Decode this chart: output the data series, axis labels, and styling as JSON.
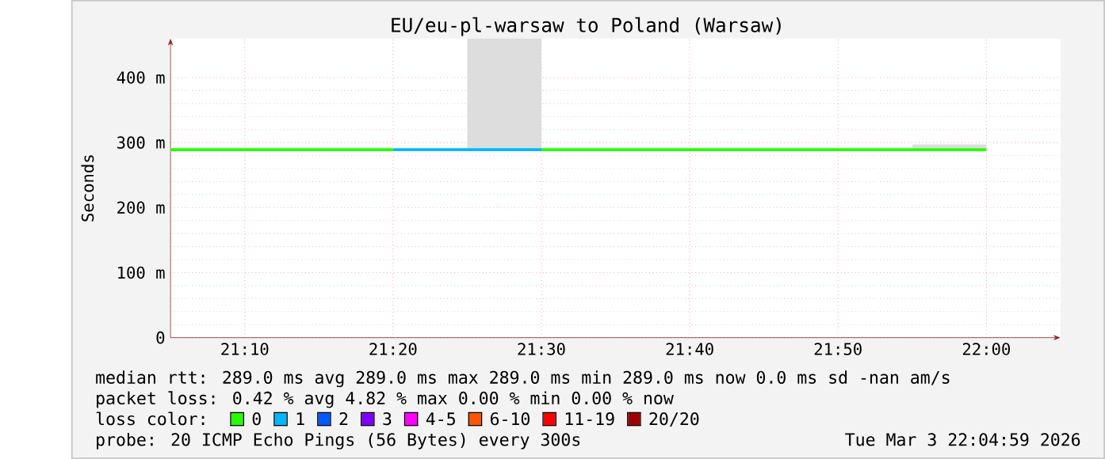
{
  "chart_data": {
    "type": "step",
    "title": "EU/eu-pl-warsaw to Poland (Warsaw)",
    "ylabel": "Seconds",
    "legend_title": "loss color:",
    "x": [
      21.0833,
      21.1667,
      21.25,
      21.3333,
      21.4167,
      21.5,
      21.5833,
      21.6667,
      21.75,
      21.8333,
      21.9167,
      22.0
    ],
    "series": [
      {
        "name": "0",
        "color": "#26ff00",
        "values": [
          289,
          289,
          289,
          289,
          null,
          289,
          289,
          289,
          289,
          289,
          289,
          289
        ],
        "lower": [
          null,
          null,
          null,
          null,
          null,
          null,
          null,
          null,
          null,
          null,
          289,
          289
        ],
        "upper": [
          null,
          null,
          null,
          null,
          null,
          null,
          null,
          null,
          null,
          null,
          297,
          297
        ]
      },
      {
        "name": "1",
        "color": "#00b8ff",
        "values": [
          null,
          null,
          null,
          289,
          289,
          289,
          null,
          null,
          null,
          null,
          null,
          null
        ],
        "lower": [
          null,
          null,
          null,
          null,
          289,
          289,
          null,
          null,
          null,
          null,
          null,
          null
        ],
        "upper": [
          null,
          null,
          null,
          null,
          460,
          460,
          null,
          null,
          null,
          null,
          null,
          null
        ]
      },
      {
        "name": "2",
        "color": "#0059ff",
        "values": [
          null,
          null,
          null,
          null,
          null,
          null,
          null,
          null,
          null,
          null,
          null,
          null
        ]
      },
      {
        "name": "3",
        "color": "#7e00ff",
        "values": [
          null,
          null,
          null,
          null,
          null,
          null,
          null,
          null,
          null,
          null,
          null,
          null
        ]
      },
      {
        "name": "4-5",
        "color": "#ff00ff",
        "values": [
          null,
          null,
          null,
          null,
          null,
          null,
          null,
          null,
          null,
          null,
          null,
          null
        ]
      },
      {
        "name": "6-10",
        "color": "#ff5500",
        "values": [
          null,
          null,
          null,
          null,
          null,
          null,
          null,
          null,
          null,
          null,
          null,
          null
        ]
      },
      {
        "name": "11-19",
        "color": "#ff0000",
        "values": [
          null,
          null,
          null,
          null,
          null,
          null,
          null,
          null,
          null,
          null,
          null,
          null
        ]
      },
      {
        "name": "20/20",
        "color": "#a10000",
        "values": [
          null,
          null,
          null,
          null,
          null,
          null,
          null,
          null,
          null,
          null,
          null,
          null
        ]
      }
    ],
    "xlim": [
      21.0833,
      22.0833
    ],
    "xticks": [
      {
        "value": 21.1667,
        "label": "21:10"
      },
      {
        "value": 21.3333,
        "label": "21:20"
      },
      {
        "value": 21.5,
        "label": "21:30"
      },
      {
        "value": 21.6667,
        "label": "21:40"
      },
      {
        "value": 21.8333,
        "label": "21:50"
      },
      {
        "value": 22.0,
        "label": "22:00"
      }
    ],
    "ylim": [
      0,
      460
    ],
    "yticks": [
      0,
      {
        "value": 100,
        "label": "100 m"
      },
      {
        "value": 200,
        "label": "200 m"
      },
      {
        "value": 300,
        "label": "300 m"
      },
      {
        "value": 400,
        "label": "400 m"
      }
    ],
    "grid": true,
    "legend": "bottom",
    "annotations": [
      "median rtt:  289.0 ms avg  289.0 ms max  289.0 ms min  289.0 ms now  0.0 ms sd  -nan   am/s",
      "packet loss: 0.42 % avg  4.82 % max  0.00 % min  0.00 % now",
      "probe:       20 ICMP Echo Pings (56 Bytes) every 300s",
      "Tue Mar  3 22:04:59 2026"
    ]
  }
}
